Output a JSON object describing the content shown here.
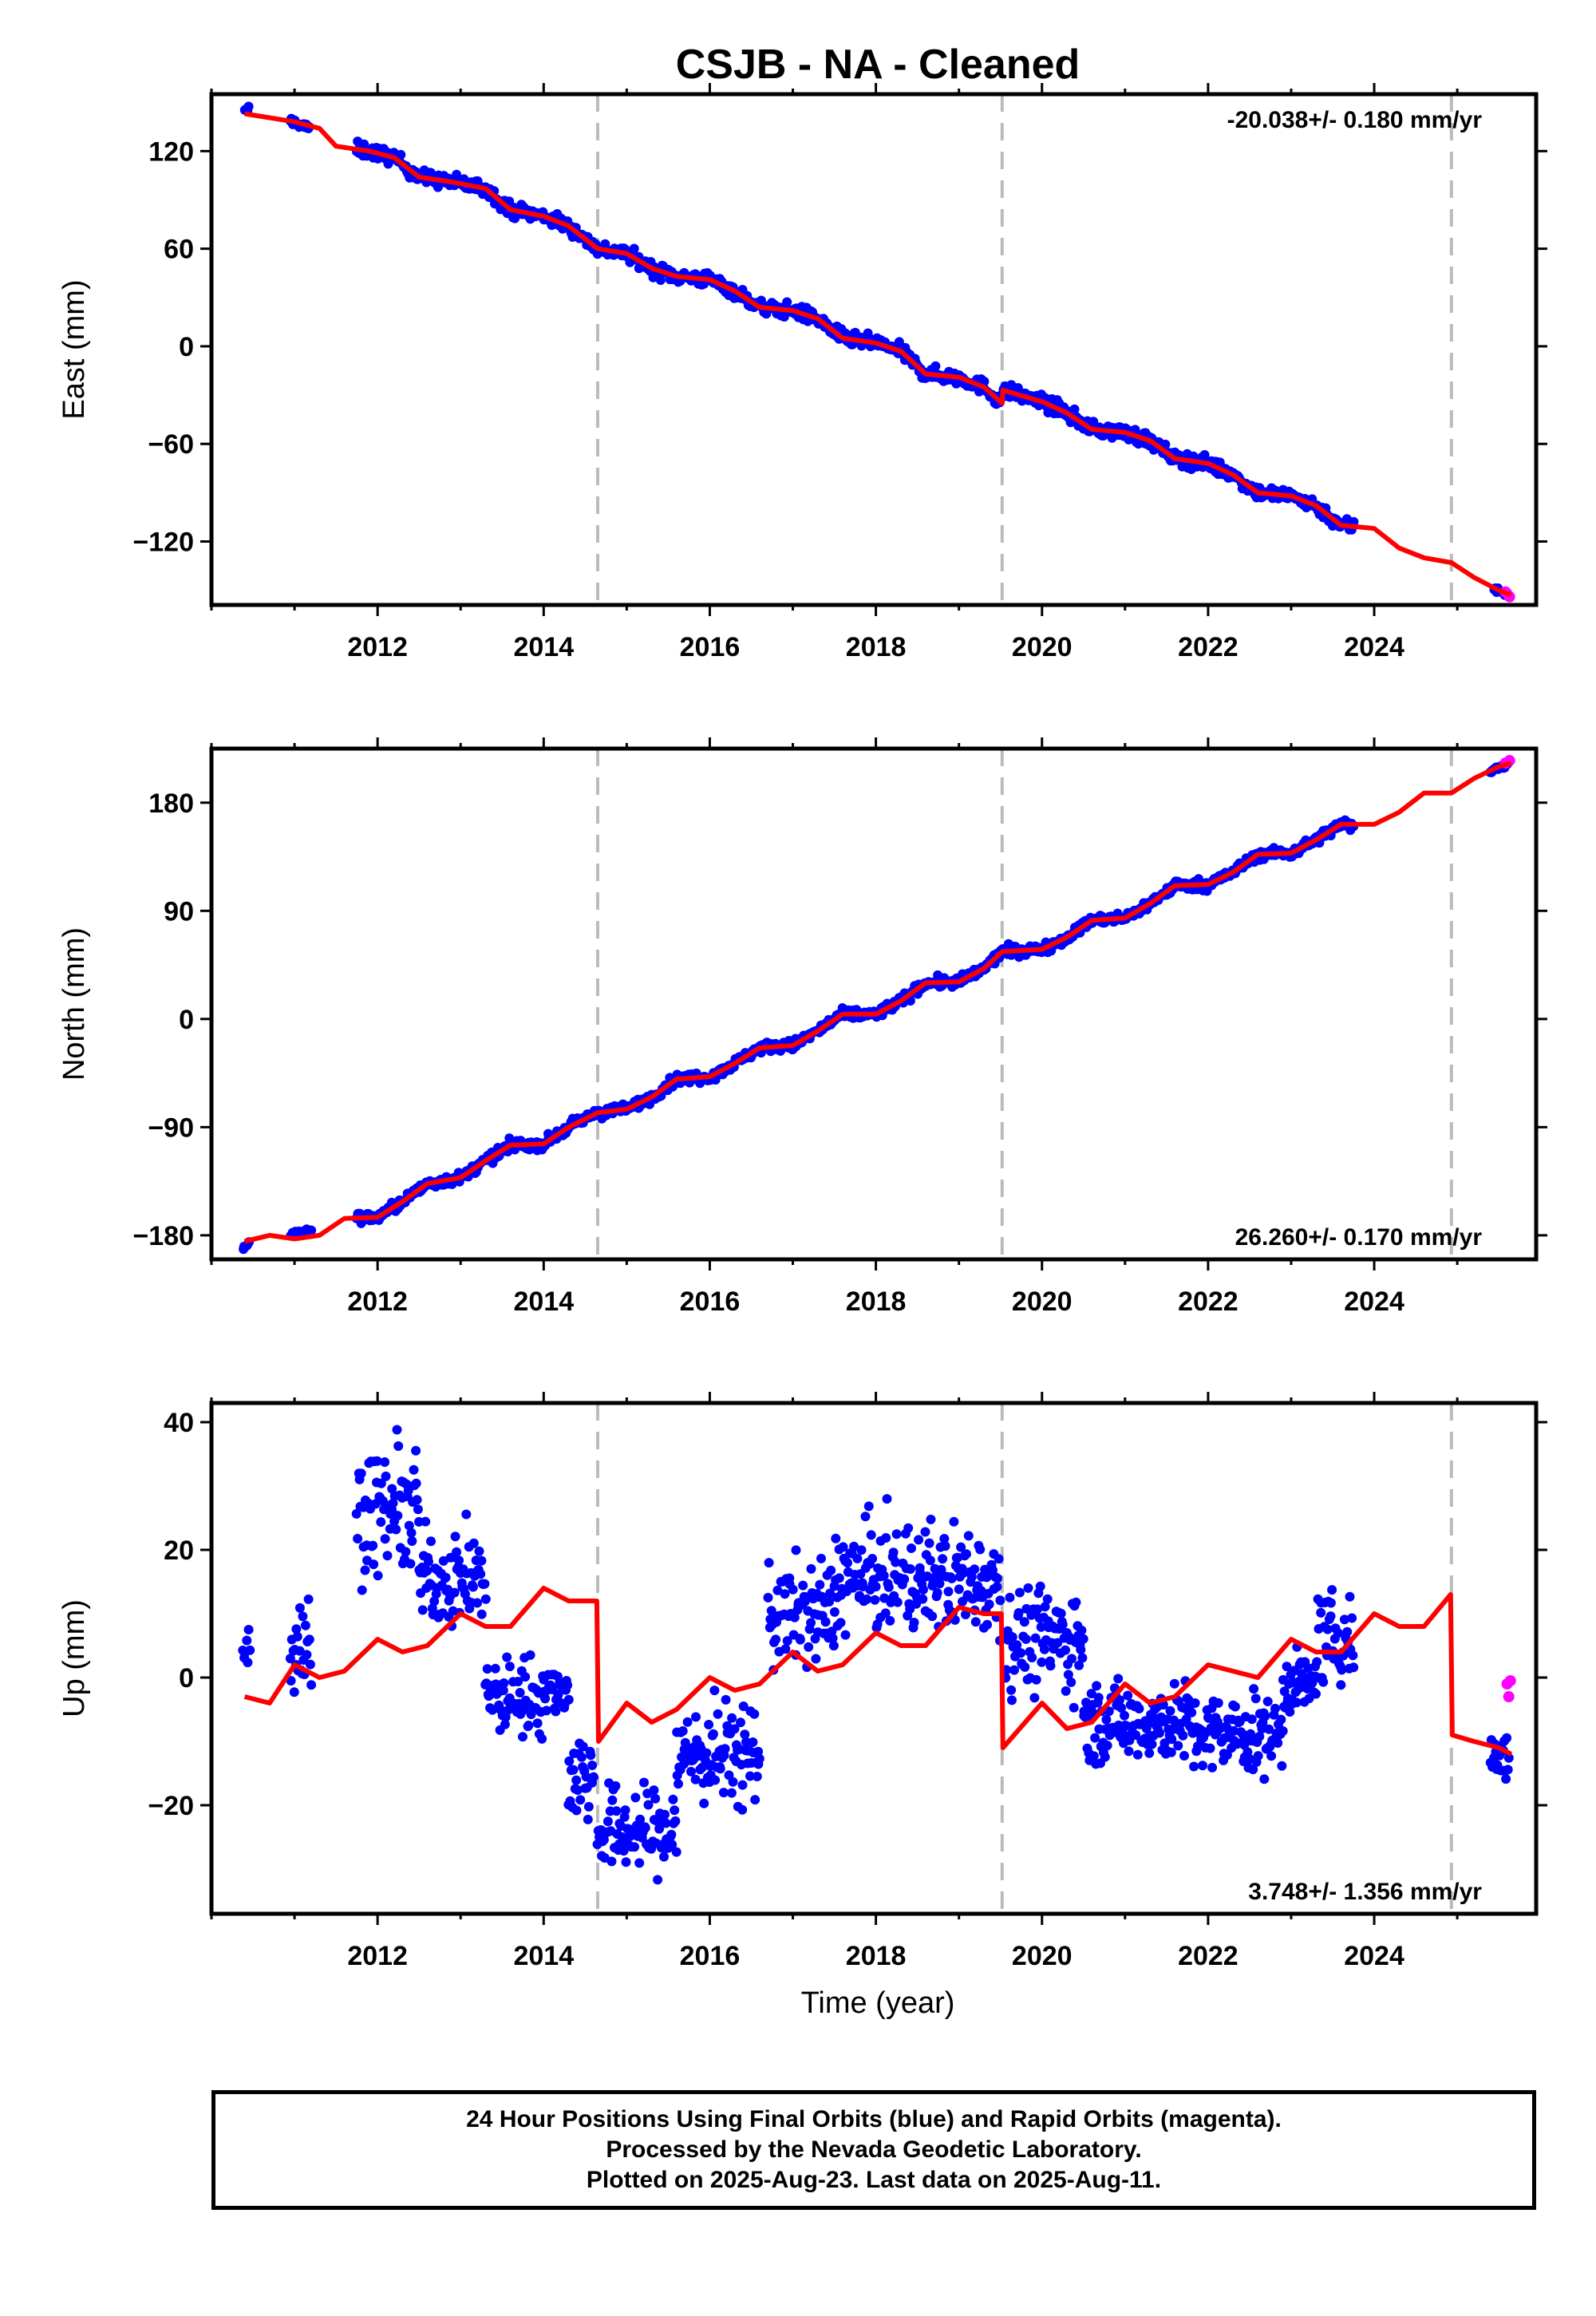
{
  "title": "CSJB  - NA - Cleaned",
  "x_axis_label": "Time (year)",
  "footer": {
    "line1": "24 Hour Positions Using Final Orbits (blue) and Rapid Orbits (magenta).",
    "line2": "Processed by the Nevada Geodetic Laboratory.",
    "line3": "Plotted on 2025-Aug-23. Last data on 2025-Aug-11."
  },
  "colors": {
    "final_orbits": "#0000ff",
    "rapid_orbits": "#ff00ff",
    "model": "#ff0000",
    "event_lines": "#bbbbbb"
  },
  "event_lines_x": [
    2014.65,
    2019.52,
    2024.93
  ],
  "chart_data": [
    {
      "type": "scatter",
      "name": "east",
      "ylabel": "East (mm)",
      "rate_label": "-20.038+/- 0.180 mm/yr",
      "rate_position": "top-right",
      "xlim": [
        2010.0,
        2025.95
      ],
      "ylim": [
        -159,
        155
      ],
      "x_ticks": [
        2012,
        2014,
        2016,
        2018,
        2020,
        2022,
        2024
      ],
      "y_ticks": [
        120,
        60,
        0,
        -60,
        -120
      ],
      "y_tick_labels": [
        "120",
        "60",
        "0",
        "−60",
        "−120"
      ],
      "model": {
        "x": [
          2010.4,
          2011.0,
          2011.3,
          2011.5,
          2011.9,
          2012.2,
          2012.5,
          2012.9,
          2013.3,
          2013.6,
          2014.0,
          2014.3,
          2014.65,
          2015.0,
          2015.3,
          2015.6,
          2016.0,
          2016.3,
          2016.6,
          2017.0,
          2017.3,
          2017.6,
          2018.0,
          2018.3,
          2018.6,
          2019.0,
          2019.3,
          2019.52,
          2019.53,
          2020.0,
          2020.3,
          2020.6,
          2021.0,
          2021.3,
          2021.6,
          2022.0,
          2022.3,
          2022.6,
          2023.0,
          2023.3,
          2023.6,
          2024.0,
          2024.3,
          2024.6,
          2024.93,
          2025.2,
          2025.5,
          2025.65
        ],
        "y": [
          143,
          138,
          134,
          123,
          120,
          116,
          104,
          101,
          97,
          84,
          80,
          74,
          60,
          57,
          48,
          43,
          41,
          34,
          24,
          22,
          17,
          5,
          2,
          -3,
          -17,
          -19,
          -25,
          -35,
          -27,
          -34,
          -41,
          -51,
          -53,
          -58,
          -69,
          -72,
          -79,
          -90,
          -92,
          -98,
          -110,
          -112,
          -124,
          -130,
          -133,
          -142,
          -150,
          -153
        ]
      },
      "final_orbits": [
        {
          "x": [
            2010.4,
            2010.45
          ],
          "y": [
            144,
            146
          ]
        },
        {
          "x": [
            2010.95,
            2011.18
          ],
          "y": [
            139,
            134
          ]
        },
        {
          "x": [
            2011.75,
            2023.75
          ],
          "y": [
            123,
            -112
          ]
        },
        {
          "x": [
            2025.45,
            2025.6
          ],
          "y": [
            -149,
            -152
          ]
        }
      ],
      "rapid_orbits": {
        "x": [
          2025.58,
          2025.63
        ],
        "y": [
          -151,
          -154
        ]
      }
    },
    {
      "type": "scatter",
      "name": "north",
      "ylabel": "North (mm)",
      "rate_label": "26.260+/- 0.170 mm/yr",
      "rate_position": "bottom-right",
      "xlim": [
        2010.0,
        2025.95
      ],
      "ylim": [
        -200,
        225
      ],
      "x_ticks": [
        2012,
        2014,
        2016,
        2018,
        2020,
        2022,
        2024
      ],
      "y_ticks": [
        180,
        90,
        0,
        -90,
        -180
      ],
      "y_tick_labels": [
        "180",
        "90",
        "0",
        "−90",
        "−180"
      ],
      "model": {
        "x": [
          2010.4,
          2010.7,
          2011.0,
          2011.3,
          2011.6,
          2012.0,
          2012.3,
          2012.6,
          2013.0,
          2013.3,
          2013.6,
          2014.0,
          2014.3,
          2014.65,
          2015.0,
          2015.3,
          2015.6,
          2016.0,
          2016.3,
          2016.6,
          2017.0,
          2017.3,
          2017.6,
          2018.0,
          2018.3,
          2018.6,
          2019.0,
          2019.3,
          2019.52,
          2020.0,
          2020.3,
          2020.6,
          2021.0,
          2021.3,
          2021.6,
          2022.0,
          2022.3,
          2022.6,
          2023.0,
          2023.3,
          2023.6,
          2024.0,
          2024.3,
          2024.6,
          2024.93,
          2025.2,
          2025.5,
          2025.65
        ],
        "y": [
          -185,
          -180,
          -183,
          -180,
          -166,
          -165,
          -152,
          -137,
          -132,
          -118,
          -105,
          -104,
          -90,
          -78,
          -75,
          -65,
          -50,
          -48,
          -37,
          -24,
          -22,
          -10,
          4,
          4,
          15,
          30,
          31,
          42,
          56,
          58,
          68,
          82,
          84,
          96,
          111,
          112,
          122,
          137,
          138,
          149,
          162,
          162,
          172,
          188,
          188,
          200,
          210,
          213
        ]
      },
      "final_orbits": [
        {
          "x": [
            2010.38,
            2010.45
          ],
          "y": [
            -190,
            -186
          ]
        },
        {
          "x": [
            2010.95,
            2011.2
          ],
          "y": [
            -180,
            -175
          ]
        },
        {
          "x": [
            2011.75,
            2023.75
          ],
          "y": [
            -163,
            162
          ]
        },
        {
          "x": [
            2025.4,
            2025.6
          ],
          "y": [
            206,
            212
          ]
        }
      ],
      "rapid_orbits": {
        "x": [
          2025.58,
          2025.63
        ],
        "y": [
          213,
          215
        ]
      }
    },
    {
      "type": "scatter",
      "name": "up",
      "ylabel": "Up (mm)",
      "rate_label": "3.748+/- 1.356 mm/yr",
      "rate_position": "bottom-right",
      "xlim": [
        2010.0,
        2025.95
      ],
      "ylim": [
        -37,
        43
      ],
      "x_ticks": [
        2012,
        2014,
        2016,
        2018,
        2020,
        2022,
        2024
      ],
      "x_tick_labels": [
        "2012",
        "2014",
        "2016",
        "2018",
        "2020",
        "2022",
        "2024"
      ],
      "y_ticks": [
        40,
        20,
        0,
        -20
      ],
      "y_tick_labels": [
        "40",
        "20",
        "0",
        "−20"
      ],
      "model": {
        "x": [
          2010.4,
          2010.7,
          2011.0,
          2011.3,
          2011.6,
          2012.0,
          2012.3,
          2012.6,
          2013.0,
          2013.3,
          2013.6,
          2014.0,
          2014.3,
          2014.64,
          2014.66,
          2015.0,
          2015.3,
          2015.6,
          2016.0,
          2016.3,
          2016.6,
          2017.0,
          2017.3,
          2017.6,
          2018.0,
          2018.3,
          2018.6,
          2019.0,
          2019.3,
          2019.51,
          2019.53,
          2020.0,
          2020.3,
          2020.6,
          2021.0,
          2021.3,
          2021.6,
          2022.0,
          2022.3,
          2022.6,
          2023.0,
          2023.3,
          2023.6,
          2024.0,
          2024.3,
          2024.6,
          2024.92,
          2024.94,
          2025.2,
          2025.5,
          2025.65
        ],
        "y": [
          -3,
          -4,
          2,
          0,
          1,
          6,
          4,
          5,
          10,
          8,
          8,
          14,
          12,
          12,
          -10,
          -4,
          -7,
          -5,
          0,
          -2,
          -1,
          4,
          1,
          2,
          7,
          5,
          5,
          11,
          10,
          10,
          -11,
          -4,
          -8,
          -7,
          -1,
          -4,
          -3,
          2,
          1,
          0,
          6,
          4,
          4,
          10,
          8,
          8,
          13,
          -9,
          -10,
          -11,
          -12
        ]
      },
      "final_orbits": [
        {
          "x": [
            2010.38,
            2010.46
          ],
          "lo": -1,
          "hi": 12
        },
        {
          "x": [
            2010.95,
            2011.2
          ],
          "lo": -8,
          "hi": 17
        },
        {
          "x": [
            2011.75,
            2012.5
          ],
          "lo": 12,
          "hi": 40
        },
        {
          "x": [
            2012.5,
            2013.3
          ],
          "lo": 5,
          "hi": 26
        },
        {
          "x": [
            2013.3,
            2014.0
          ],
          "lo": -12,
          "hi": 6
        },
        {
          "x": [
            2014.0,
            2014.3
          ],
          "lo": -8,
          "hi": 4
        },
        {
          "x": [
            2014.3,
            2014.6
          ],
          "lo": -26,
          "hi": -5
        },
        {
          "x": [
            2014.65,
            2015.6
          ],
          "lo": -34,
          "hi": -14
        },
        {
          "x": [
            2015.6,
            2016.6
          ],
          "lo": -24,
          "hi": 0
        },
        {
          "x": [
            2016.7,
            2017.5
          ],
          "lo": -2,
          "hi": 22
        },
        {
          "x": [
            2017.5,
            2019.5
          ],
          "lo": 3,
          "hi": 28
        },
        {
          "x": [
            2019.55,
            2020.5
          ],
          "lo": -6,
          "hi": 18
        },
        {
          "x": [
            2020.5,
            2021.8
          ],
          "lo": -16,
          "hi": 2
        },
        {
          "x": [
            2021.8,
            2022.9
          ],
          "lo": -18,
          "hi": 0
        },
        {
          "x": [
            2022.9,
            2023.3
          ],
          "lo": -8,
          "hi": 6
        },
        {
          "x": [
            2023.3,
            2023.75
          ],
          "lo": -4,
          "hi": 16
        },
        {
          "x": [
            2025.4,
            2025.62
          ],
          "lo": -20,
          "hi": -5
        }
      ],
      "rapid_orbits": {
        "x": [
          2025.6,
          2025.62,
          2025.64
        ],
        "y": [
          -1,
          -3,
          -0.5
        ]
      }
    }
  ]
}
